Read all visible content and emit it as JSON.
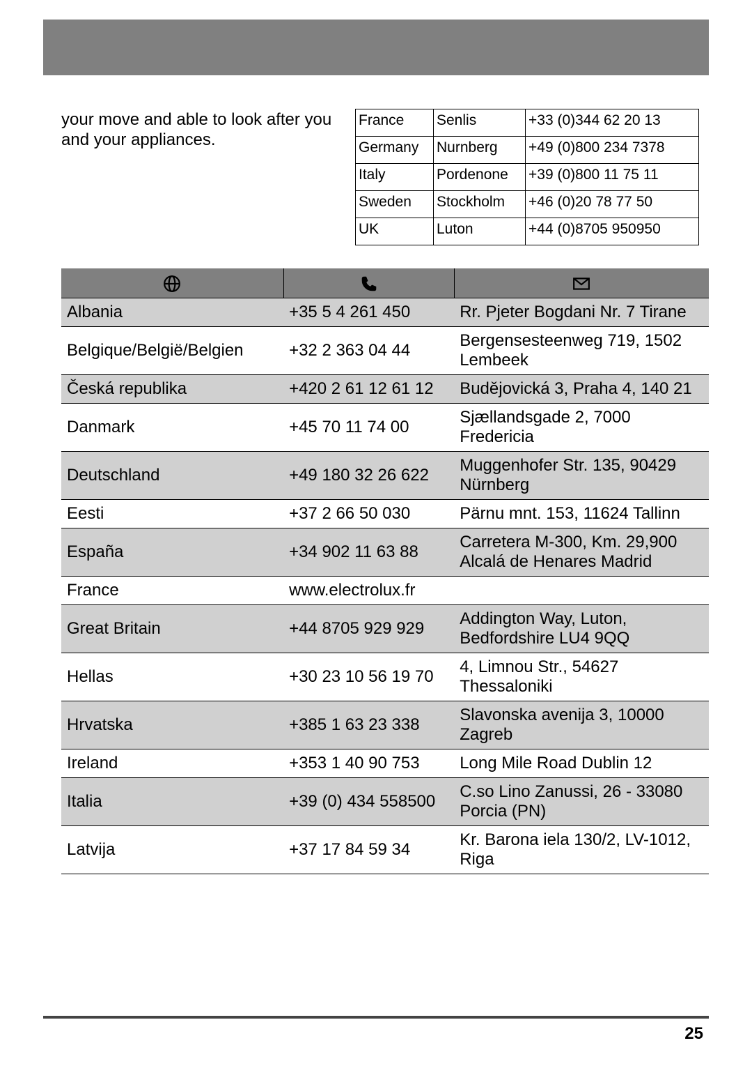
{
  "intro_text": "your move and able to look after you and your appliances.",
  "page_number": "25",
  "colors": {
    "header_bg": "#808080",
    "row_alt_bg": "#d0d0d0",
    "border": "#000000",
    "text": "#000000",
    "page_bg": "#ffffff"
  },
  "small_table": {
    "rows": [
      {
        "country": "France",
        "city": "Senlis",
        "phone": "+33 (0)344 62 20 13"
      },
      {
        "country": "Germany",
        "city": "Nurnberg",
        "phone": "+49 (0)800 234 7378"
      },
      {
        "country": "Italy",
        "city": "Pordenone",
        "phone": "+39 (0)800 11 75 11"
      },
      {
        "country": "Sweden",
        "city": "Stockholm",
        "phone": "+46 (0)20 78 77 50"
      },
      {
        "country": "UK",
        "city": "Luton",
        "phone": "+44 (0)8705 950950"
      }
    ]
  },
  "big_table": {
    "header_icons": [
      "globe-icon",
      "phone-icon",
      "mail-icon"
    ],
    "rows": [
      {
        "alt": true,
        "country": "Albania",
        "phone": "+35 5 4 261 450",
        "address": "Rr. Pjeter Bogdani Nr. 7 Tirane"
      },
      {
        "alt": false,
        "country": "Belgique/België/Belgien",
        "phone": "+32 2 363 04 44",
        "address": "Bergensesteenweg 719, 1502 Lembeek"
      },
      {
        "alt": true,
        "country": "Česká republika",
        "phone": "+420 2 61 12 61 12",
        "address": "Budějovická 3, Praha 4, 140 21"
      },
      {
        "alt": false,
        "country": "Danmark",
        "phone": "+45 70 11 74 00",
        "address": "Sjællandsgade 2, 7000 Fredericia"
      },
      {
        "alt": true,
        "country": "Deutschland",
        "phone": "+49 180 32 26 622",
        "address": "Muggenhofer Str. 135, 90429 Nürnberg"
      },
      {
        "alt": false,
        "country": "Eesti",
        "phone": "+37 2 66 50 030",
        "address": "Pärnu mnt. 153, 11624 Tallinn"
      },
      {
        "alt": true,
        "country": "España",
        "phone": "+34 902 11 63 88",
        "address": "Carretera M-300, Km. 29,900 Alcalá de Henares Madrid"
      },
      {
        "alt": false,
        "country": "France",
        "phone": "www.electrolux.fr",
        "address": "",
        "span_phone": true
      },
      {
        "alt": true,
        "country": "Great Britain",
        "phone": "+44 8705 929 929",
        "address": "Addington Way, Luton, Bedfordshire LU4 9QQ"
      },
      {
        "alt": false,
        "country": "Hellas",
        "phone": "+30 23 10 56 19 70",
        "address": "4, Limnou Str., 54627 Thessaloniki"
      },
      {
        "alt": true,
        "country": "Hrvatska",
        "phone": "+385 1 63 23 338",
        "address": "Slavonska avenija 3, 10000 Zagreb"
      },
      {
        "alt": false,
        "country": "Ireland",
        "phone": "+353 1 40 90 753",
        "address": "Long Mile Road Dublin 12"
      },
      {
        "alt": true,
        "country": "Italia",
        "phone": "+39 (0) 434 558500",
        "address": "C.so Lino Zanussi, 26 - 33080 Porcia (PN)"
      },
      {
        "alt": false,
        "country": "Latvija",
        "phone": "+37 17 84 59 34",
        "address": "Kr. Barona iela 130/2, LV-1012, Riga"
      }
    ]
  }
}
